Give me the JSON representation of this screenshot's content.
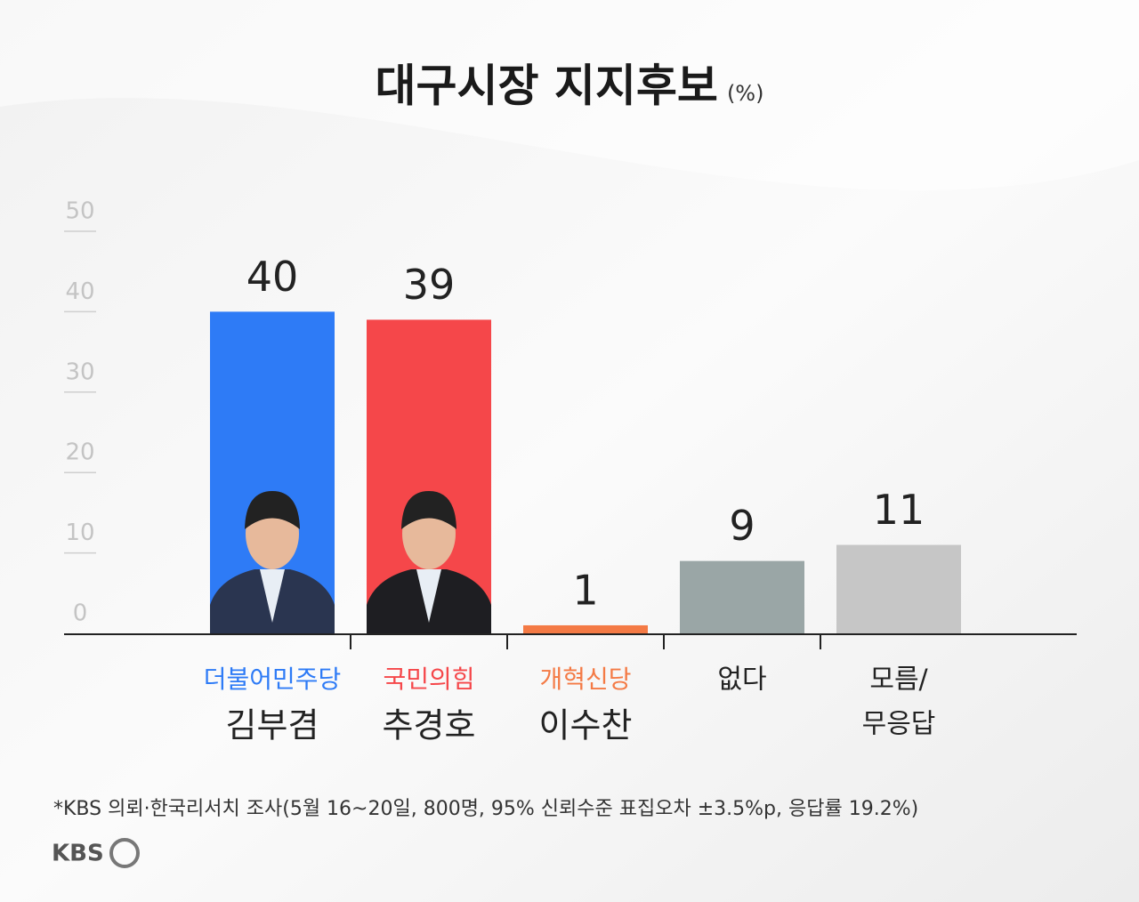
{
  "chart_data": {
    "type": "bar",
    "title": "대구시장 지지후보",
    "subtitle": "(%)",
    "categories": [
      {
        "party": "더불어민주당",
        "name": "김부겸"
      },
      {
        "party": "국민의힘",
        "name": "추경호"
      },
      {
        "party": "개혁신당",
        "name": "이수찬"
      },
      {
        "lines": [
          "없다"
        ]
      },
      {
        "lines": [
          "모름/",
          "무응답"
        ]
      }
    ],
    "values": [
      40,
      39,
      1,
      9,
      11
    ],
    "colors": [
      "#2e7bf6",
      "#f5474a",
      "#f47a45",
      "#9aa6a6",
      "#c6c6c6"
    ],
    "label_colors": [
      "#2e7bf6",
      "#f5474a",
      "#f47a45",
      "#222222",
      "#222222"
    ],
    "ylim": [
      0,
      50
    ],
    "yticks": [
      0,
      10,
      20,
      30,
      40,
      50
    ],
    "footnote": "*KBS 의뢰·한국리서치 조사(5월 16~20일, 800명, 95% 신뢰수준 표집오차 ±3.5%p, 응답률 19.2%)",
    "logo": "KBS"
  }
}
